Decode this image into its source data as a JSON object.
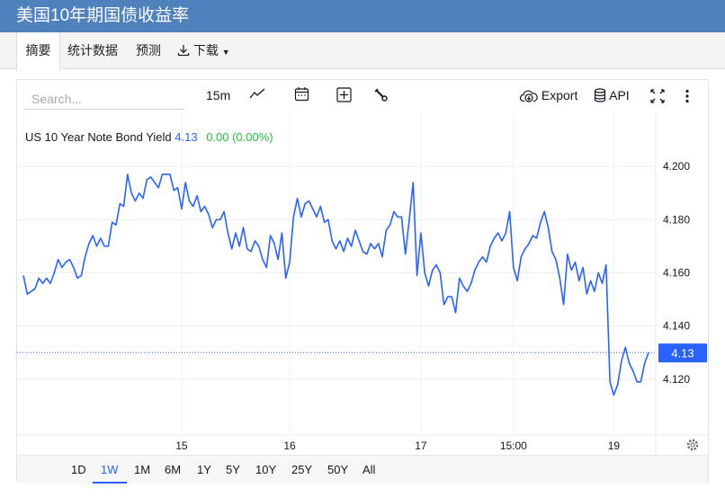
{
  "header": {
    "title": "美国10年期国债收益率"
  },
  "tabs": [
    {
      "label": "摘要",
      "active": true
    },
    {
      "label": "统计数据"
    },
    {
      "label": "预测"
    },
    {
      "label": "下载",
      "icon": "download-icon",
      "dropdown": true
    }
  ],
  "toolbar": {
    "search_placeholder": "Search...",
    "interval": "15m",
    "export_label": "Export",
    "api_label": "API",
    "icons": [
      "line-chart-icon",
      "calendar-icon",
      "plus-box-icon",
      "wrench-icon",
      "cloud-download-icon",
      "database-icon",
      "fullscreen-icon",
      "more-vertical-icon"
    ]
  },
  "legend": {
    "name": "US 10 Year Note Bond Yield",
    "last": "4.13",
    "change": "0.00 (0.00%)",
    "colors": {
      "last": "#2962ff",
      "change": "#22c33a"
    }
  },
  "range_buttons": [
    {
      "label": "1D"
    },
    {
      "label": "1W",
      "selected": true
    },
    {
      "label": "1M"
    },
    {
      "label": "6M"
    },
    {
      "label": "1Y"
    },
    {
      "label": "5Y"
    },
    {
      "label": "10Y"
    },
    {
      "label": "25Y"
    },
    {
      "label": "50Y"
    },
    {
      "label": "All"
    }
  ],
  "colors": {
    "header": "#4f81bd",
    "line": "#2962ff",
    "price_tag": "#2962ff"
  },
  "chart_data": {
    "type": "line",
    "title": "",
    "ylim": [
      4.099,
      4.219
    ],
    "y_ticks": [
      "4.200",
      "4.180",
      "4.160",
      "4.140",
      "4.120"
    ],
    "y_axis_side": "right",
    "x_ticks": [
      {
        "label": "15",
        "index": 41
      },
      {
        "label": "16",
        "index": 69
      },
      {
        "label": "17",
        "index": 103
      },
      {
        "label": "15:00",
        "index": 127
      },
      {
        "label": "19",
        "index": 153
      }
    ],
    "grid": true,
    "last_value": 4.13,
    "last_label": "4.13",
    "values": [
      4.159,
      4.152,
      4.153,
      4.154,
      4.158,
      4.156,
      4.158,
      4.156,
      4.16,
      4.165,
      4.162,
      4.164,
      4.165,
      4.162,
      4.158,
      4.159,
      4.166,
      4.171,
      4.174,
      4.17,
      4.173,
      4.17,
      4.17,
      4.179,
      4.178,
      4.186,
      4.185,
      4.197,
      4.19,
      4.187,
      4.19,
      4.188,
      4.195,
      4.196,
      4.194,
      4.192,
      4.197,
      4.197,
      4.197,
      4.191,
      4.192,
      4.184,
      4.194,
      4.187,
      4.185,
      4.189,
      4.183,
      4.185,
      4.182,
      4.177,
      4.18,
      4.18,
      4.183,
      4.175,
      4.169,
      4.175,
      4.17,
      4.177,
      4.169,
      4.168,
      4.172,
      4.17,
      4.165,
      4.162,
      4.174,
      4.171,
      4.165,
      4.175,
      4.158,
      4.164,
      4.181,
      4.188,
      4.181,
      4.186,
      4.187,
      4.184,
      4.181,
      4.185,
      4.179,
      4.18,
      4.172,
      4.169,
      4.172,
      4.168,
      4.173,
      4.17,
      4.176,
      4.172,
      4.168,
      4.167,
      4.171,
      4.169,
      4.171,
      4.166,
      4.176,
      4.178,
      4.183,
      4.181,
      4.181,
      4.167,
      4.18,
      4.194,
      4.159,
      4.175,
      4.16,
      4.155,
      4.161,
      4.163,
      4.16,
      4.148,
      4.151,
      4.151,
      4.145,
      4.158,
      4.155,
      4.153,
      4.156,
      4.161,
      4.164,
      4.166,
      4.164,
      4.17,
      4.173,
      4.175,
      4.172,
      4.175,
      4.183,
      4.162,
      4.157,
      4.166,
      4.169,
      4.171,
      4.174,
      4.173,
      4.179,
      4.183,
      4.177,
      4.168,
      4.165,
      4.158,
      4.148,
      4.167,
      4.161,
      4.164,
      4.157,
      4.162,
      4.152,
      4.157,
      4.153,
      4.16,
      4.156,
      4.163,
      4.119,
      4.114,
      4.118,
      4.127,
      4.132,
      4.126,
      4.123,
      4.119,
      4.119,
      4.126,
      4.13
    ]
  }
}
